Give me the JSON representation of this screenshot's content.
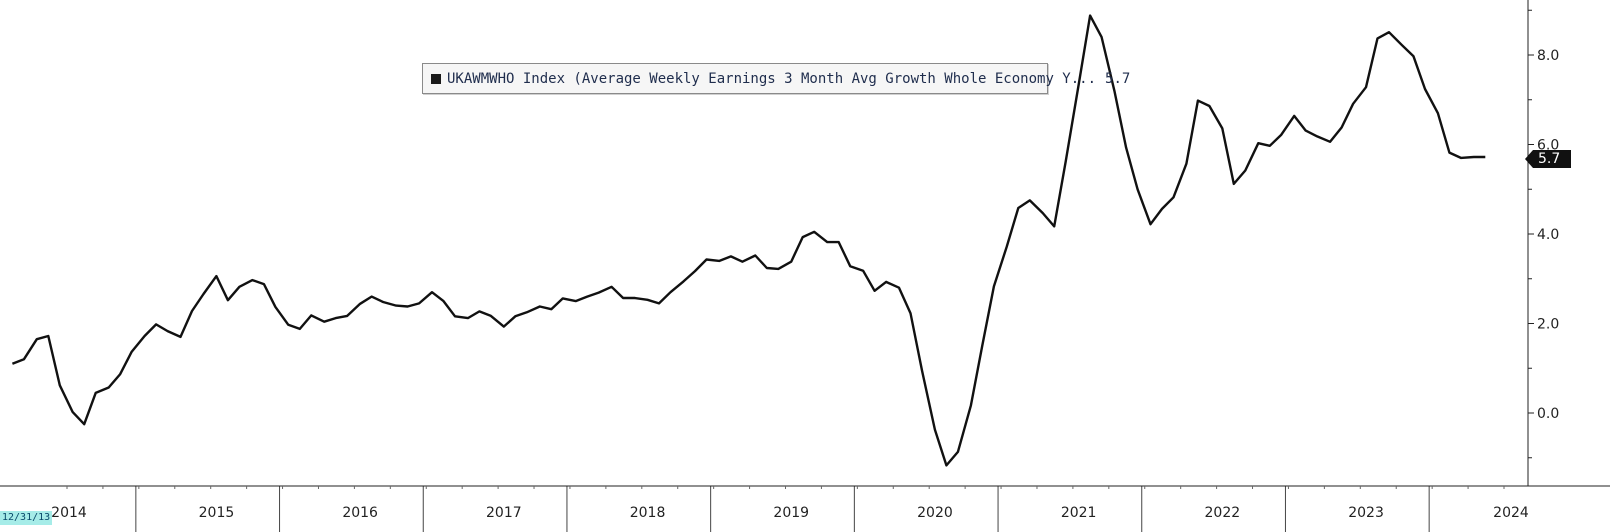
{
  "chart_data": {
    "type": "line",
    "title": "",
    "xlabel": "",
    "ylabel": "",
    "legend": {
      "label": "UKAWMWHO Index (Average Weekly Earnings 3 Month Avg Growth Whole Economy Y...",
      "last_value": "5.7",
      "placement": "top-center"
    },
    "last_value_tag": "5.7",
    "start_date_tag": "12/31/13",
    "grid": false,
    "line_color": "#111111",
    "ylim": [
      -1.3,
      9.1
    ],
    "yticks": [
      0.0,
      2.0,
      4.0,
      6.0,
      8.0
    ],
    "ytick_labels": [
      "0.0",
      "2.0",
      "4.0",
      "6.0",
      "8.0"
    ],
    "xlim": [
      2013.62,
      2024.15
    ],
    "x_year_labels": [
      "2014",
      "2015",
      "2016",
      "2017",
      "2018",
      "2019",
      "2020",
      "2021",
      "2022",
      "2023",
      "2024"
    ],
    "series": [
      {
        "values": [
          [
            2013.62,
            1.1
          ],
          [
            2013.7,
            1.2
          ],
          [
            2013.79,
            1.65
          ],
          [
            2013.87,
            1.72
          ],
          [
            2013.95,
            0.62
          ],
          [
            2014.04,
            0.02
          ],
          [
            2014.12,
            -0.25
          ],
          [
            2014.2,
            0.45
          ],
          [
            2014.29,
            0.57
          ],
          [
            2014.37,
            0.87
          ],
          [
            2014.45,
            1.37
          ],
          [
            2014.54,
            1.72
          ],
          [
            2014.62,
            1.98
          ],
          [
            2014.7,
            1.83
          ],
          [
            2014.79,
            1.7
          ],
          [
            2014.87,
            2.28
          ],
          [
            2014.95,
            2.66
          ],
          [
            2015.04,
            3.06
          ],
          [
            2015.12,
            2.52
          ],
          [
            2015.2,
            2.82
          ],
          [
            2015.29,
            2.97
          ],
          [
            2015.37,
            2.88
          ],
          [
            2015.45,
            2.37
          ],
          [
            2015.54,
            1.97
          ],
          [
            2015.62,
            1.88
          ],
          [
            2015.7,
            2.18
          ],
          [
            2015.79,
            2.04
          ],
          [
            2015.87,
            2.12
          ],
          [
            2015.95,
            2.17
          ],
          [
            2016.04,
            2.44
          ],
          [
            2016.12,
            2.6
          ],
          [
            2016.2,
            2.48
          ],
          [
            2016.29,
            2.4
          ],
          [
            2016.37,
            2.38
          ],
          [
            2016.45,
            2.45
          ],
          [
            2016.54,
            2.7
          ],
          [
            2016.62,
            2.5
          ],
          [
            2016.7,
            2.16
          ],
          [
            2016.79,
            2.12
          ],
          [
            2016.87,
            2.27
          ],
          [
            2016.95,
            2.17
          ],
          [
            2017.04,
            1.93
          ],
          [
            2017.12,
            2.16
          ],
          [
            2017.2,
            2.25
          ],
          [
            2017.29,
            2.38
          ],
          [
            2017.37,
            2.32
          ],
          [
            2017.45,
            2.56
          ],
          [
            2017.54,
            2.5
          ],
          [
            2017.62,
            2.6
          ],
          [
            2017.7,
            2.69
          ],
          [
            2017.79,
            2.82
          ],
          [
            2017.87,
            2.57
          ],
          [
            2017.95,
            2.57
          ],
          [
            2018.04,
            2.53
          ],
          [
            2018.12,
            2.45
          ],
          [
            2018.2,
            2.7
          ],
          [
            2018.29,
            2.94
          ],
          [
            2018.37,
            3.17
          ],
          [
            2018.45,
            3.43
          ],
          [
            2018.54,
            3.4
          ],
          [
            2018.62,
            3.5
          ],
          [
            2018.7,
            3.38
          ],
          [
            2018.79,
            3.52
          ],
          [
            2018.87,
            3.24
          ],
          [
            2018.95,
            3.22
          ],
          [
            2019.04,
            3.38
          ],
          [
            2019.12,
            3.93
          ],
          [
            2019.2,
            4.05
          ],
          [
            2019.29,
            3.82
          ],
          [
            2019.37,
            3.82
          ],
          [
            2019.45,
            3.28
          ],
          [
            2019.54,
            3.18
          ],
          [
            2019.62,
            2.73
          ],
          [
            2019.7,
            2.93
          ],
          [
            2019.79,
            2.8
          ],
          [
            2019.87,
            2.23
          ],
          [
            2019.95,
            0.95
          ],
          [
            2020.04,
            -0.37
          ],
          [
            2020.12,
            -1.17
          ],
          [
            2020.2,
            -0.87
          ],
          [
            2020.29,
            0.17
          ],
          [
            2020.37,
            1.52
          ],
          [
            2020.45,
            2.83
          ],
          [
            2020.54,
            3.72
          ],
          [
            2020.62,
            4.58
          ],
          [
            2020.7,
            4.75
          ],
          [
            2020.79,
            4.47
          ],
          [
            2020.87,
            4.17
          ],
          [
            2020.95,
            5.62
          ],
          [
            2021.04,
            7.33
          ],
          [
            2021.12,
            8.88
          ],
          [
            2021.2,
            8.4
          ],
          [
            2021.29,
            7.18
          ],
          [
            2021.37,
            5.93
          ],
          [
            2021.45,
            5.0
          ],
          [
            2021.54,
            4.22
          ],
          [
            2021.62,
            4.56
          ],
          [
            2021.7,
            4.82
          ],
          [
            2021.79,
            5.57
          ],
          [
            2021.87,
            6.98
          ],
          [
            2021.95,
            6.86
          ],
          [
            2022.04,
            6.36
          ],
          [
            2022.12,
            5.12
          ],
          [
            2022.2,
            5.42
          ],
          [
            2022.29,
            6.03
          ],
          [
            2022.37,
            5.97
          ],
          [
            2022.45,
            6.22
          ],
          [
            2022.54,
            6.64
          ],
          [
            2022.62,
            6.31
          ],
          [
            2022.7,
            6.18
          ],
          [
            2022.79,
            6.06
          ],
          [
            2022.87,
            6.38
          ],
          [
            2022.95,
            6.91
          ],
          [
            2023.04,
            7.28
          ],
          [
            2023.12,
            8.37
          ],
          [
            2023.2,
            8.51
          ],
          [
            2023.29,
            8.22
          ],
          [
            2023.37,
            7.97
          ],
          [
            2023.45,
            7.24
          ],
          [
            2023.54,
            6.7
          ],
          [
            2023.62,
            5.82
          ],
          [
            2023.7,
            5.7
          ],
          [
            2023.79,
            5.72
          ],
          [
            2023.87,
            5.72
          ]
        ]
      }
    ]
  }
}
